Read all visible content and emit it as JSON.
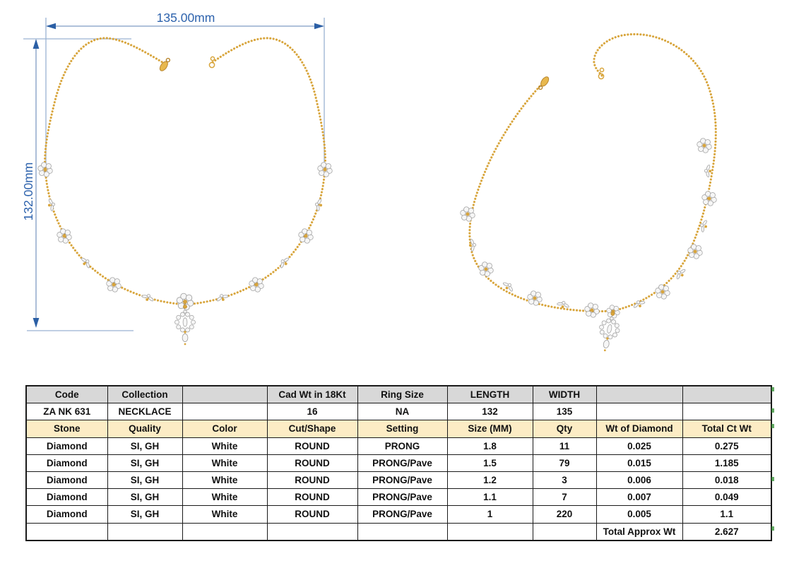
{
  "drawing": {
    "width_dim": "135.00mm",
    "height_dim": "132.00mm"
  },
  "table": {
    "rows": [
      {
        "style": "hdr-gray",
        "cells": [
          "Code",
          "Collection",
          "",
          "Cad Wt in 18Kt",
          "Ring Size",
          "LENGTH",
          "WIDTH",
          "",
          ""
        ]
      },
      {
        "style": "plain",
        "cells": [
          "ZA NK 631",
          "NECKLACE",
          "",
          "16",
          "NA",
          "132",
          "135",
          "",
          ""
        ]
      },
      {
        "style": "hdr-yellow",
        "cells": [
          "Stone",
          "Quality",
          "Color",
          "Cut/Shape",
          "Setting",
          "Size (MM)",
          "Qty",
          "Wt of Diamond",
          "Total Ct Wt"
        ]
      },
      {
        "style": "plain",
        "cells": [
          "Diamond",
          "SI, GH",
          "White",
          "ROUND",
          "PRONG",
          "1.8",
          "11",
          "0.025",
          "0.275"
        ]
      },
      {
        "style": "plain",
        "cells": [
          "Diamond",
          "SI, GH",
          "White",
          "ROUND",
          "PRONG/Pave",
          "1.5",
          "79",
          "0.015",
          "1.185"
        ]
      },
      {
        "style": "plain",
        "cells": [
          "Diamond",
          "SI, GH",
          "White",
          "ROUND",
          "PRONG/Pave",
          "1.2",
          "3",
          "0.006",
          "0.018"
        ]
      },
      {
        "style": "plain",
        "cells": [
          "Diamond",
          "SI, GH",
          "White",
          "ROUND",
          "PRONG/Pave",
          "1.1",
          "7",
          "0.007",
          "0.049"
        ]
      },
      {
        "style": "plain",
        "cells": [
          "Diamond",
          "SI, GH",
          "White",
          "ROUND",
          "PRONG/Pave",
          "1",
          "220",
          "0.005",
          "1.1"
        ]
      },
      {
        "style": "plain",
        "cells": [
          "",
          "",
          "",
          "",
          "",
          "",
          "",
          "Total Approx Wt",
          "2.627"
        ]
      }
    ]
  },
  "colors": {
    "dimension_text": "#2e63ad",
    "dimension_line": "#8aa5c8",
    "arrow_blue": "#2b5fa5",
    "gold": "#d8a53c",
    "gold_dark": "#b8862e",
    "diamond_fill": "#f6f6f6",
    "diamond_stroke": "#a4a4a4",
    "header_gray": "#d8d8d8",
    "header_yellow": "#fcecc5",
    "table_border": "#1a1a1a",
    "artifact_green": "#2e8b2e"
  }
}
